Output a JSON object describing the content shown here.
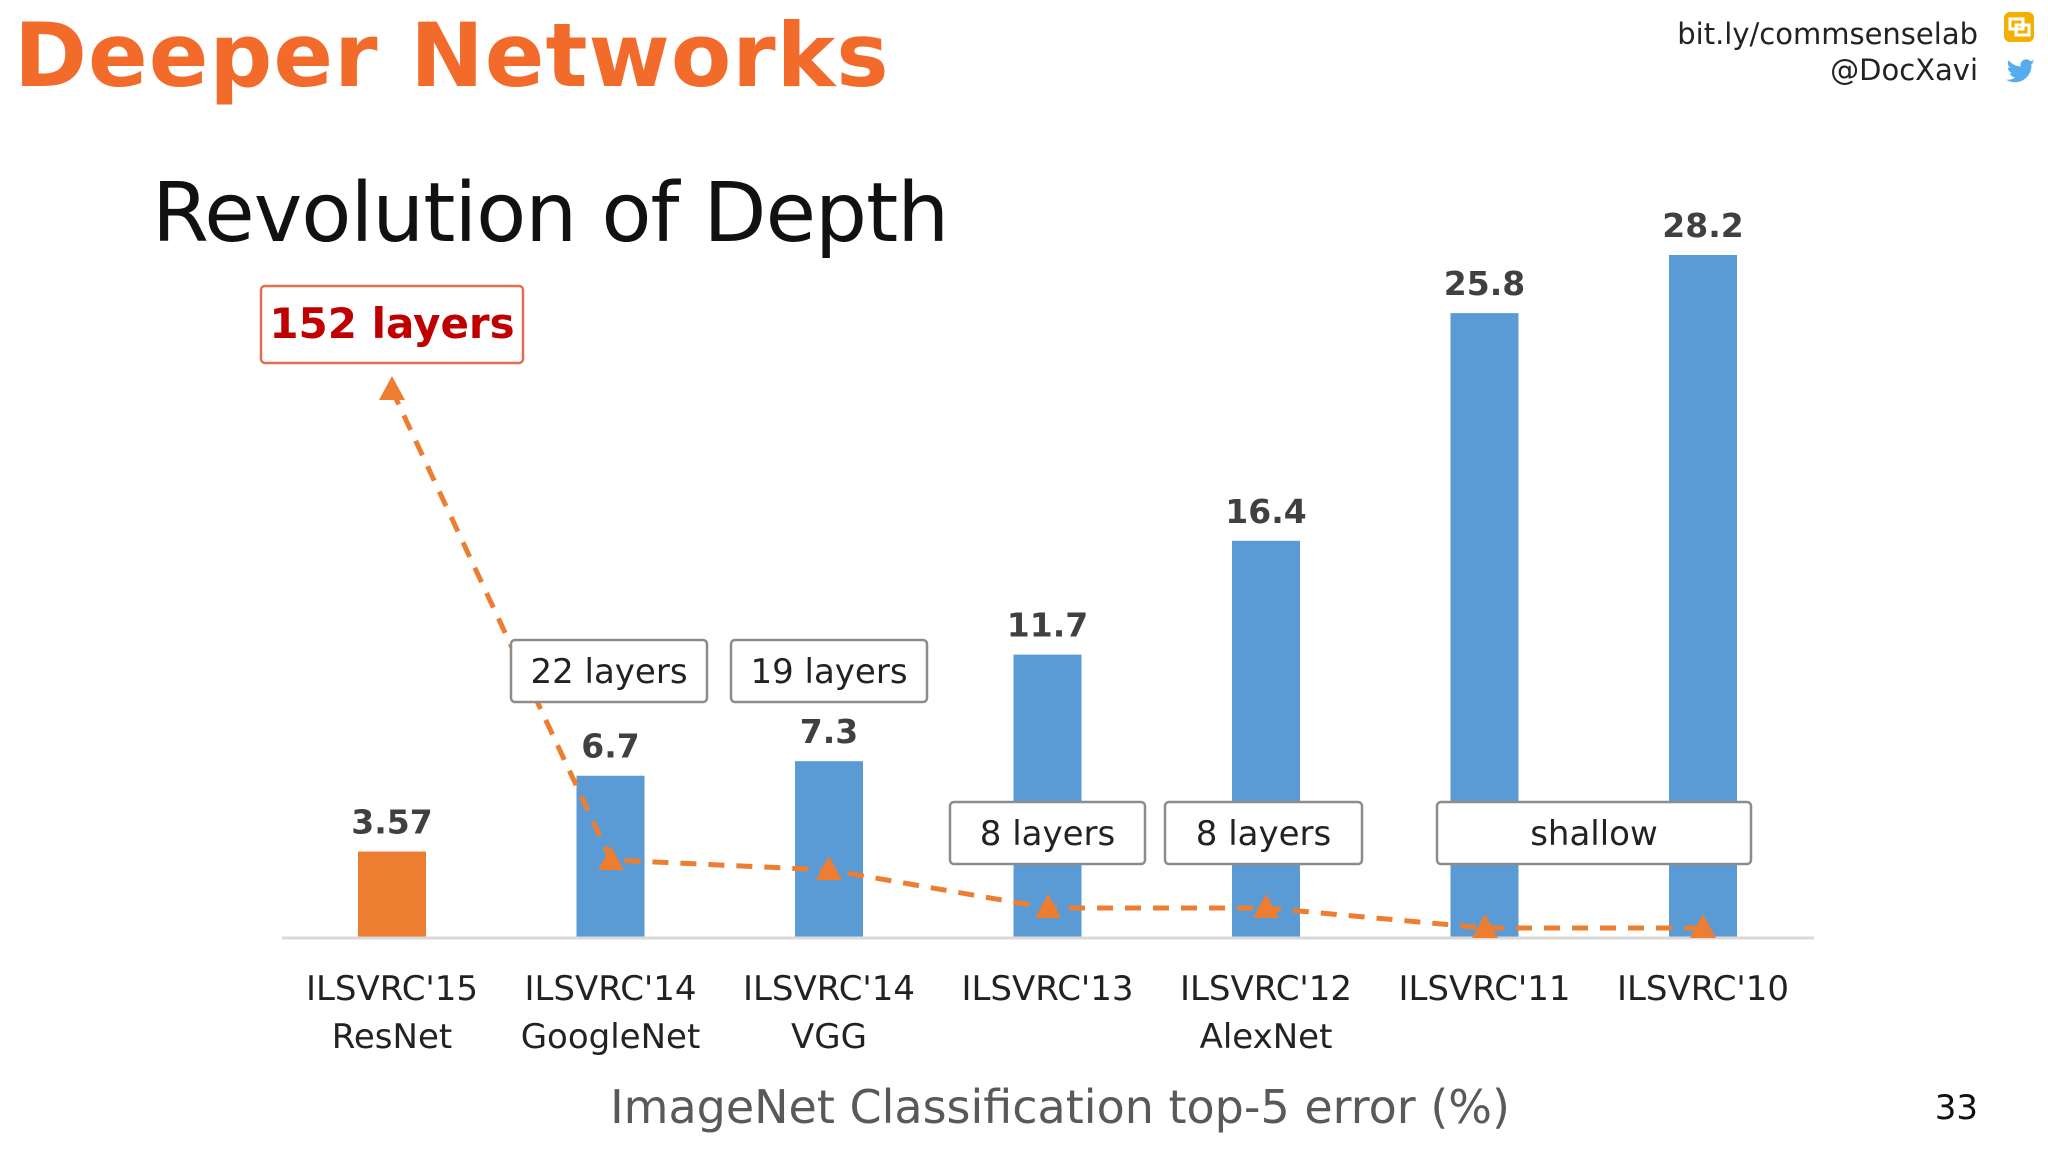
{
  "slide": {
    "title": "Deeper Networks",
    "credit_link": "bit.ly/commsenselab",
    "credit_handle": "@DocXavi",
    "page_number": "33",
    "icons": [
      "presentation-icon",
      "twitter-bird-icon"
    ]
  },
  "colors": {
    "title_orange": "#f26b2a",
    "bar_blue": "#5b9bd5",
    "bar_orange": "#ed7d31",
    "trend_orange": "#ed7d31",
    "highlight_red": "#c00000"
  },
  "chart_data": {
    "type": "bar",
    "title": "Revolution of Depth",
    "xlabel": "ImageNet Classification top-5 error (%)",
    "ylabel": "",
    "ylim": [
      0,
      30
    ],
    "grid": false,
    "categories": [
      [
        "ILSVRC'15",
        "ResNet"
      ],
      [
        "ILSVRC'14",
        "GoogleNet"
      ],
      [
        "ILSVRC'14",
        "VGG"
      ],
      [
        "ILSVRC'13",
        ""
      ],
      [
        "ILSVRC'12",
        "AlexNet"
      ],
      [
        "ILSVRC'11",
        ""
      ],
      [
        "ILSVRC'10",
        ""
      ]
    ],
    "values": [
      3.57,
      6.7,
      7.3,
      11.7,
      16.4,
      25.8,
      28.2
    ],
    "value_labels": [
      "3.57",
      "6.7",
      "7.3",
      "11.7",
      "16.4",
      "25.8",
      "28.2"
    ],
    "bar_colors": [
      "#ed7d31",
      "#5b9bd5",
      "#5b9bd5",
      "#5b9bd5",
      "#5b9bd5",
      "#5b9bd5",
      "#5b9bd5"
    ],
    "depth_labels": [
      {
        "text": "152 layers",
        "highlight": true
      },
      {
        "text": "22 layers"
      },
      {
        "text": "19 layers"
      },
      {
        "text": "8 layers"
      },
      {
        "text": "8 layers"
      },
      {
        "text": "shallow"
      }
    ],
    "depth_trend": {
      "style": "dashed line with triangle markers",
      "note_values": [
        152,
        22,
        19,
        8,
        8,
        0,
        0
      ]
    }
  }
}
